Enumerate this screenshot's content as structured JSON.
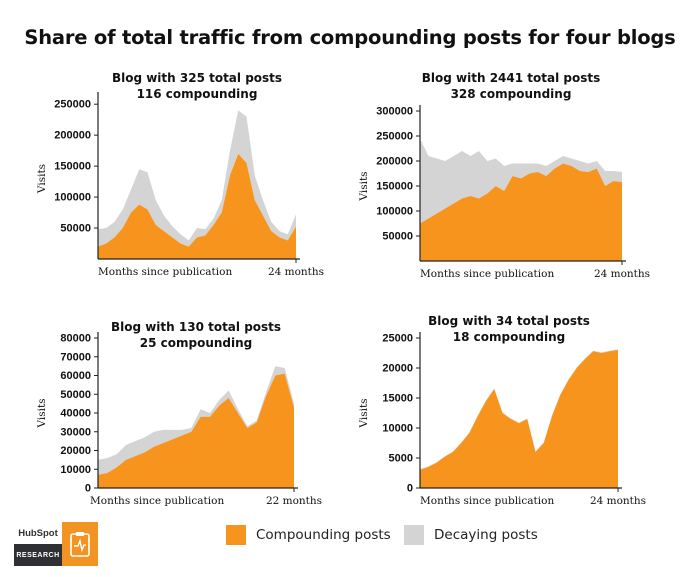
{
  "title": "Share of total traffic from compounding posts for four blogs",
  "legend": [
    {
      "label": "Compounding posts",
      "color": "#f7941d"
    },
    {
      "label": "Decaying posts",
      "color": "#d4d4d4"
    }
  ],
  "logo": {
    "brand": "HubSpot",
    "sublabel": "RESEARCH",
    "icon": "clipboard-pulse-icon"
  },
  "chart_data": [
    {
      "type": "area",
      "title": [
        "Blog with 325 total posts",
        "116 compounding"
      ],
      "xlabel": "Months since publication",
      "x_end_label": "24 months",
      "ylabel": "Visits",
      "ylim": [
        0,
        260000
      ],
      "yticks": [
        50000,
        100000,
        150000,
        200000,
        250000
      ],
      "stacked": true,
      "series": [
        {
          "name": "Compounding posts",
          "values": [
            20000,
            25000,
            35000,
            50000,
            75000,
            88000,
            80000,
            55000,
            45000,
            35000,
            25000,
            20000,
            35000,
            38000,
            55000,
            75000,
            135000,
            170000,
            155000,
            95000,
            70000,
            45000,
            35000,
            30000,
            52000
          ]
        },
        {
          "name": "Decaying posts",
          "values": [
            28000,
            25000,
            25000,
            30000,
            37000,
            57000,
            60000,
            40000,
            25000,
            18000,
            15000,
            10000,
            15000,
            10000,
            10000,
            20000,
            40000,
            70000,
            75000,
            40000,
            25000,
            15000,
            10000,
            10000,
            20000
          ]
        }
      ]
    },
    {
      "type": "area",
      "title": [
        "Blog with 2441 total posts",
        "328 compounding"
      ],
      "xlabel": "Months since publication",
      "x_end_label": "24 months",
      "ylabel": "Visits",
      "ylim": [
        0,
        300000
      ],
      "yticks": [
        50000,
        100000,
        150000,
        200000,
        250000,
        300000
      ],
      "stacked": true,
      "series": [
        {
          "name": "Compounding posts",
          "values": [
            75000,
            85000,
            95000,
            105000,
            115000,
            125000,
            130000,
            125000,
            135000,
            150000,
            140000,
            170000,
            165000,
            175000,
            178000,
            170000,
            185000,
            195000,
            190000,
            180000,
            178000,
            185000,
            150000,
            160000,
            158000
          ]
        },
        {
          "name": "Decaying posts",
          "values": [
            170000,
            125000,
            110000,
            95000,
            95000,
            95000,
            80000,
            95000,
            65000,
            55000,
            50000,
            25000,
            30000,
            20000,
            17000,
            20000,
            15000,
            15000,
            15000,
            20000,
            17000,
            15000,
            30000,
            20000,
            20000
          ]
        }
      ]
    },
    {
      "type": "area",
      "title": [
        "Blog with 130 total posts",
        "25 compounding"
      ],
      "xlabel": "Months since publication",
      "x_end_label": "22 months",
      "ylabel": "Visits",
      "ylim": [
        0,
        80000
      ],
      "yticks": [
        0,
        10000,
        20000,
        30000,
        40000,
        50000,
        60000,
        70000,
        80000
      ],
      "stacked": true,
      "series": [
        {
          "name": "Compounding posts",
          "values": [
            7000,
            8000,
            11000,
            15000,
            17000,
            19000,
            22000,
            24000,
            26000,
            28000,
            30000,
            38000,
            38000,
            44000,
            48000,
            40000,
            32000,
            35000,
            49000,
            60000,
            61000,
            43000
          ]
        },
        {
          "name": "Decaying posts",
          "values": [
            8000,
            8000,
            7000,
            8000,
            8000,
            8000,
            8000,
            7000,
            5000,
            3000,
            2000,
            4000,
            2000,
            3000,
            4000,
            2000,
            1000,
            1000,
            2000,
            5000,
            3000,
            2000
          ]
        }
      ]
    },
    {
      "type": "area",
      "title": [
        "Blog with 34 total posts",
        "18 compounding"
      ],
      "xlabel": "Months since publication",
      "x_end_label": "24 months",
      "ylabel": "Visits",
      "ylim": [
        0,
        25000
      ],
      "yticks": [
        0,
        5000,
        10000,
        15000,
        20000,
        25000
      ],
      "stacked": true,
      "series": [
        {
          "name": "Compounding posts",
          "values": [
            3000,
            3500,
            4200,
            5200,
            6000,
            7500,
            9200,
            12000,
            14500,
            16500,
            12500,
            11500,
            10800,
            11500,
            6000,
            7500,
            12000,
            15500,
            18000,
            20000,
            21500,
            22800,
            22500,
            22800,
            23000
          ]
        },
        {
          "name": "Decaying posts",
          "values": [
            200,
            100,
            100,
            100,
            100,
            100,
            100,
            100,
            100,
            100,
            100,
            100,
            100,
            100,
            100,
            100,
            100,
            100,
            100,
            100,
            100,
            100,
            100,
            100,
            100
          ]
        }
      ]
    }
  ]
}
